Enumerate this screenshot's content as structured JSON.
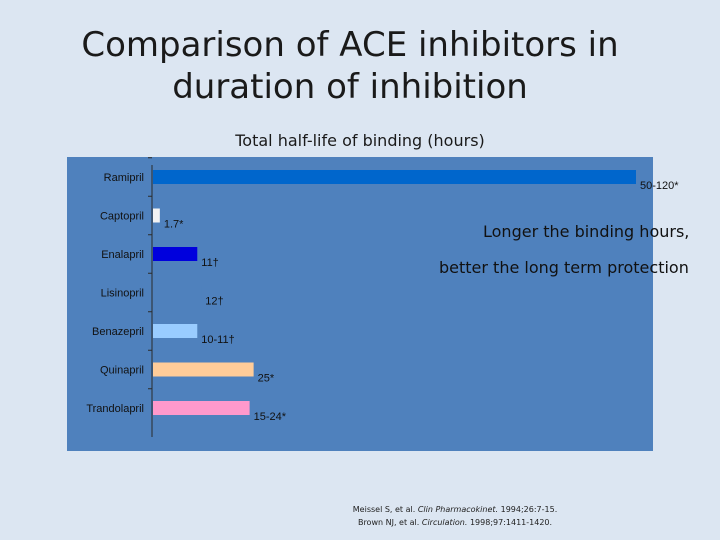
{
  "slide": {
    "title_line1": "Comparison of ACE inhibitors in",
    "title_line2": "duration of inhibition"
  },
  "chart": {
    "caption": "Total half-life of binding (hours)",
    "annotation_line1": "Longer the binding hours,",
    "annotation_line2": "better the long term protection"
  },
  "chart_data": {
    "type": "bar",
    "orientation": "horizontal",
    "title": "Total half-life of binding (hours)",
    "categories": [
      "Ramipril",
      "Captopril",
      "Enalapril",
      "Lisinopril",
      "Benazepril",
      "Quinapril",
      "Trandolapril"
    ],
    "values": [
      120,
      1.7,
      11,
      12,
      11,
      25,
      24
    ],
    "value_labels": [
      "50-120*",
      "1.7*",
      "11†",
      "12†",
      "10-11†",
      "25*",
      "15-24*"
    ],
    "bar_colors": [
      "#0066cc",
      "#f2f2f2",
      "#0000dd",
      "#4f81bd",
      "#99ccff",
      "#ffcc99",
      "#ff99cc"
    ],
    "xlim": [
      0,
      120
    ],
    "grid": false,
    "legend": "none"
  },
  "references": {
    "line1_authors": "Meissel S, et al. ",
    "line1_journal": "Clin Pharmacokinet.",
    "line1_cite": " 1994;26:7-15.",
    "line2_authors": "Brown NJ, et al. ",
    "line2_journal": "Circulation.",
    "line2_cite": " 1998;97:1411-1420."
  }
}
